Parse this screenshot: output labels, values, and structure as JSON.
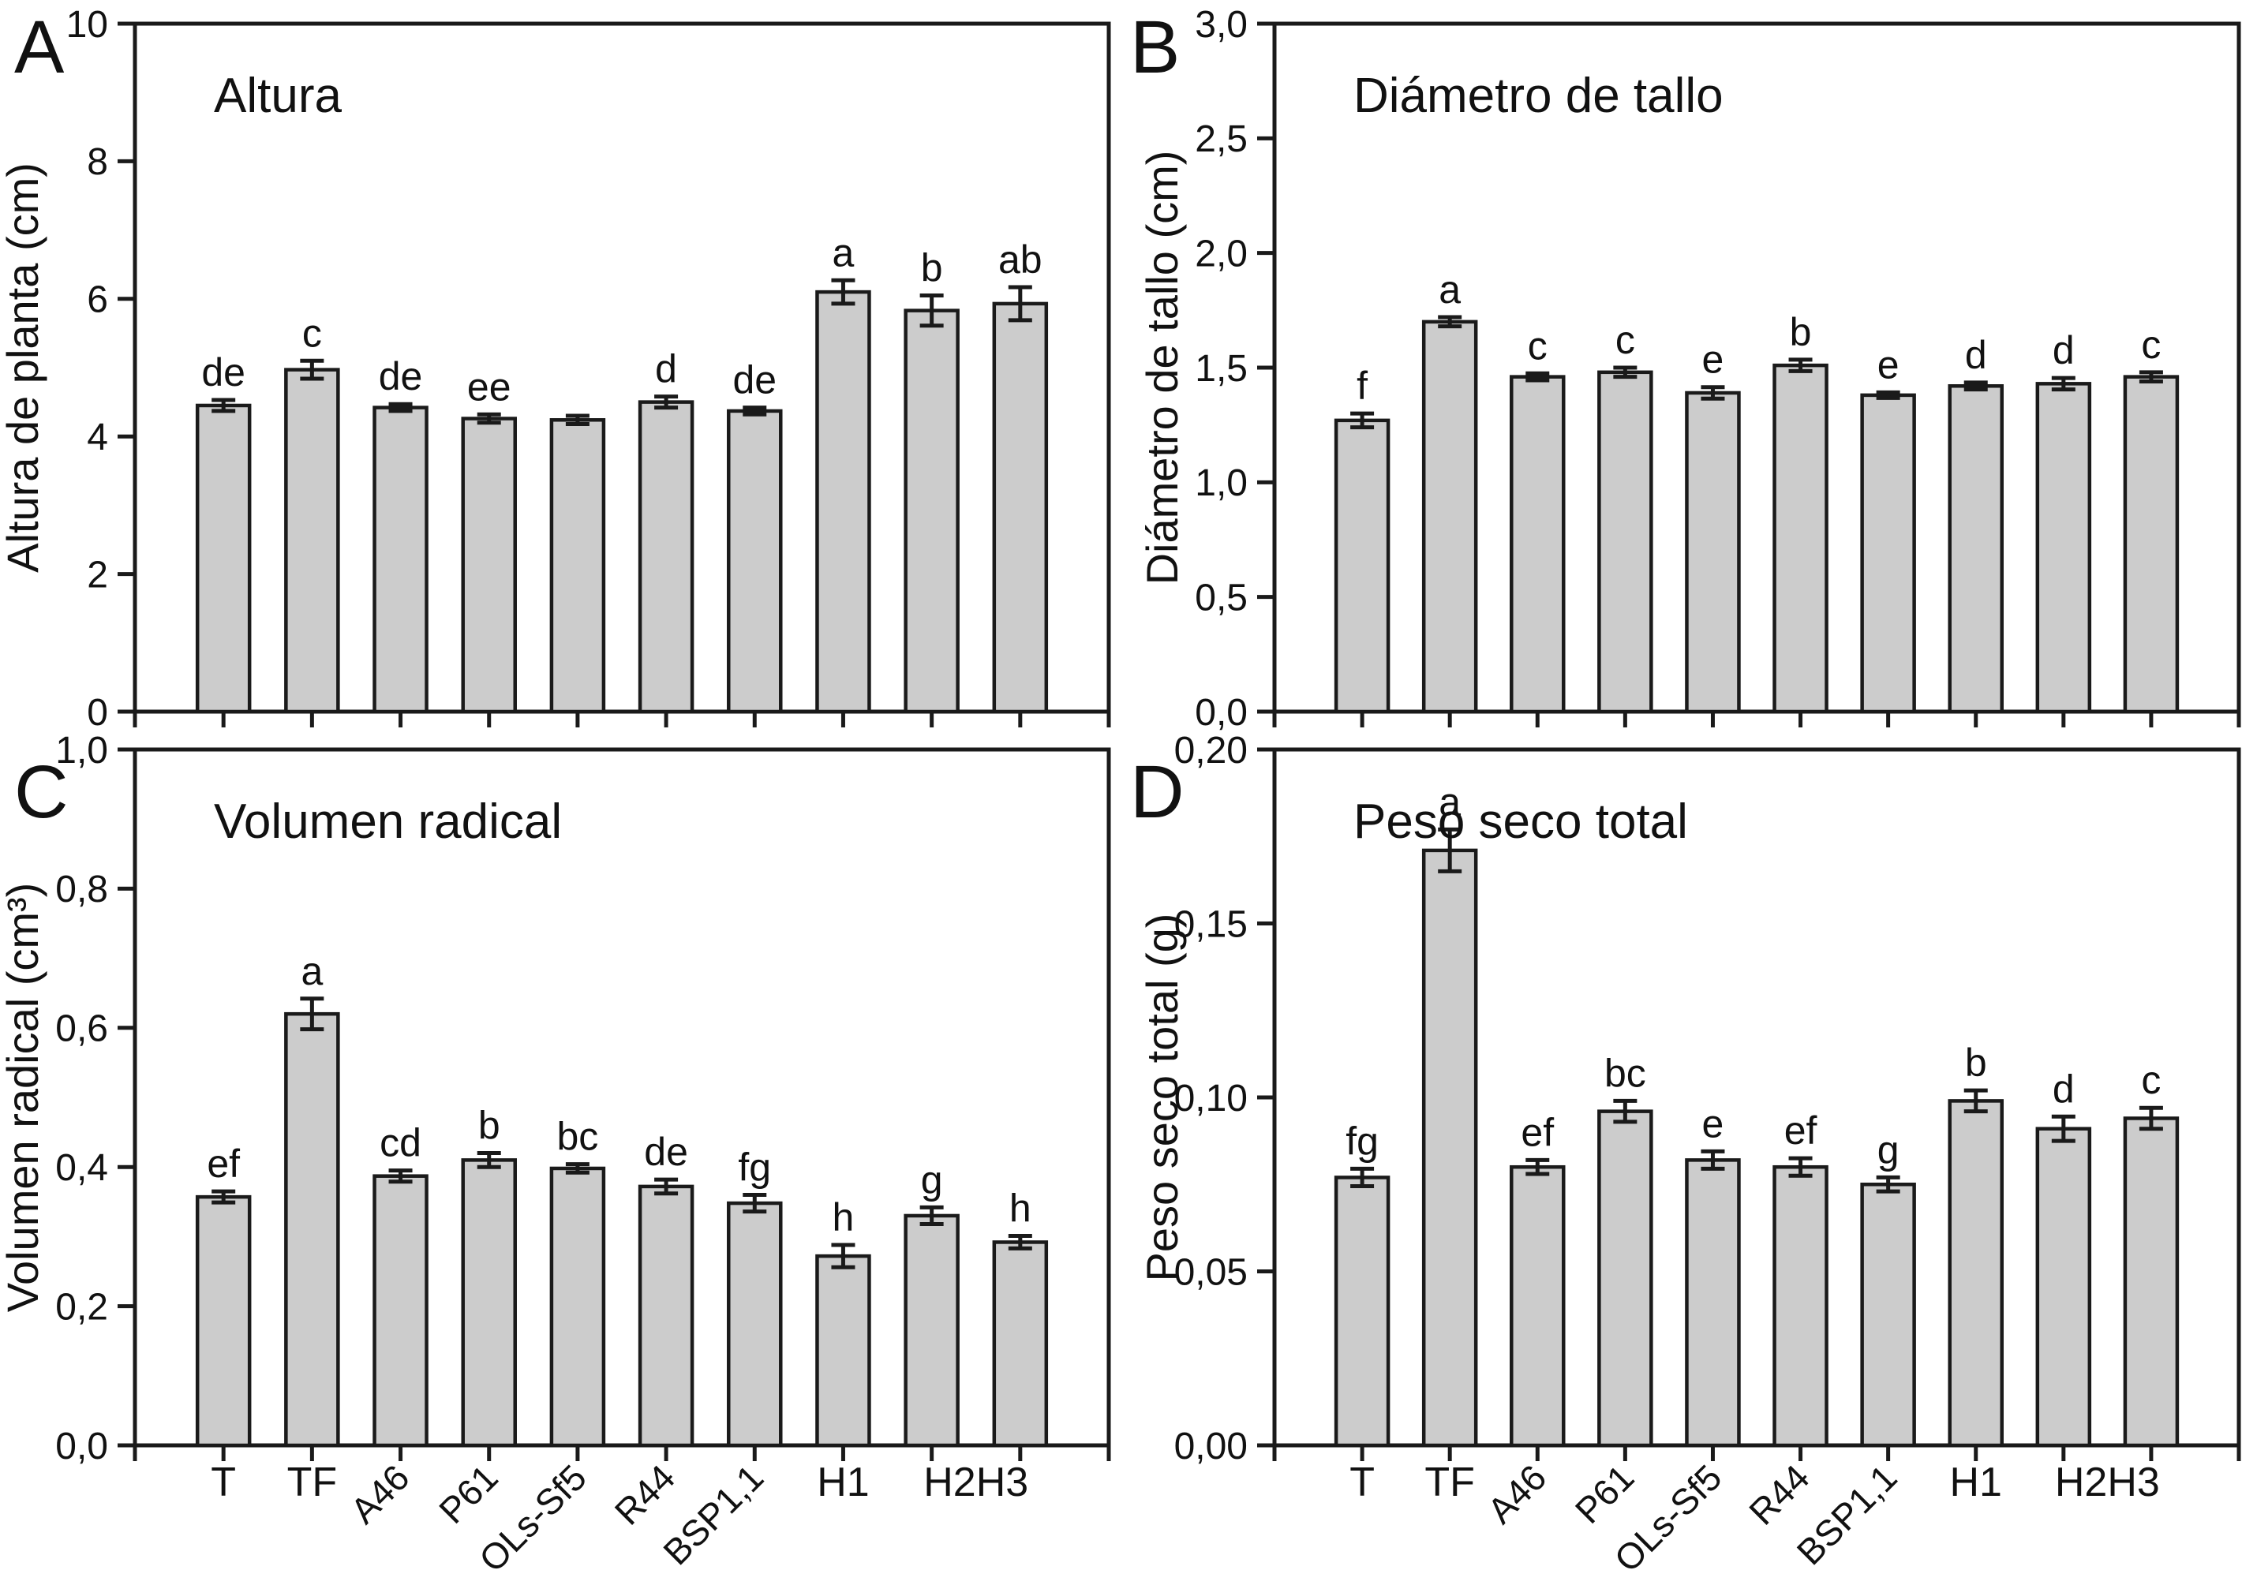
{
  "figure": {
    "background_color": "#ffffff",
    "bar_fill_color": "#cccccc",
    "line_color": "#1a1a1a",
    "text_color": "#111111"
  },
  "chart_data": {
    "type": "bar",
    "grid": false,
    "legend": "none",
    "decimal_style": "comma",
    "categories": [
      "T",
      "TF",
      "A46",
      "P61",
      "OLs-Sf5",
      "R44",
      "BSP1,1",
      "H1",
      "H2H3"
    ],
    "x_labels": [
      {
        "text": "T",
        "bar": 0,
        "rotated": false
      },
      {
        "text": "TF",
        "bar": 1,
        "rotated": false
      },
      {
        "text": "A46",
        "bar": 2,
        "rotated": true
      },
      {
        "text": "P61",
        "bar": 3,
        "rotated": true
      },
      {
        "text": "OLs-Sf5",
        "bar": 4,
        "rotated": true
      },
      {
        "text": "R44",
        "bar": 5,
        "rotated": true
      },
      {
        "text": "BSP1,1",
        "bar": 6,
        "rotated": true
      },
      {
        "text": "H1",
        "bar": 7,
        "rotated": false
      },
      {
        "text": "H2H3",
        "bar": 8.5,
        "rotated": false
      }
    ],
    "panels": [
      {
        "id": "A",
        "panel_letter": "A",
        "title": "Altura",
        "ylabel": "Altura de planta (cm)",
        "ylim": [
          0,
          10
        ],
        "yticks": [
          {
            "v": 0,
            "label": "0"
          },
          {
            "v": 2,
            "label": "2"
          },
          {
            "v": 4,
            "label": "4"
          },
          {
            "v": 6,
            "label": "6"
          },
          {
            "v": 8,
            "label": "8"
          },
          {
            "v": 10,
            "label": "10"
          }
        ],
        "values": [
          4.45,
          4.97,
          4.42,
          4.26,
          4.24,
          4.5,
          4.37,
          6.1,
          5.83,
          5.93
        ],
        "errors": [
          0.08,
          0.13,
          0.05,
          0.06,
          0.06,
          0.08,
          0.05,
          0.17,
          0.22,
          0.24
        ],
        "letters": [
          "de",
          "c",
          "de",
          "ee",
          "",
          "d",
          "de",
          "a",
          "b",
          "ab"
        ],
        "show_x_labels": false
      },
      {
        "id": "B",
        "panel_letter": "B",
        "title": "Diámetro de tallo",
        "ylabel": "Diámetro de tallo (cm)",
        "ylim": [
          0,
          3.0
        ],
        "yticks": [
          {
            "v": 0.0,
            "label": "0,0"
          },
          {
            "v": 0.5,
            "label": "0,5"
          },
          {
            "v": 1.0,
            "label": "1,0"
          },
          {
            "v": 1.5,
            "label": "1,5"
          },
          {
            "v": 2.0,
            "label": "2,0"
          },
          {
            "v": 2.5,
            "label": "2,5"
          },
          {
            "v": 3.0,
            "label": "3,0"
          }
        ],
        "values": [
          1.27,
          1.7,
          1.46,
          1.48,
          1.39,
          1.51,
          1.38,
          1.42,
          1.43,
          1.46
        ],
        "errors": [
          0.03,
          0.02,
          0.015,
          0.02,
          0.025,
          0.025,
          0.012,
          0.015,
          0.025,
          0.02
        ],
        "letters": [
          "f",
          "a",
          "c",
          "c",
          "e",
          "b",
          "e",
          "d",
          "d",
          "c"
        ],
        "show_x_labels": false
      },
      {
        "id": "C",
        "panel_letter": "C",
        "title": "Volumen radical",
        "ylabel": "Volumen radical (cm³)",
        "ylim": [
          0,
          1.0
        ],
        "yticks": [
          {
            "v": 0.0,
            "label": "0,0"
          },
          {
            "v": 0.2,
            "label": "0,2"
          },
          {
            "v": 0.4,
            "label": "0,4"
          },
          {
            "v": 0.6,
            "label": "0,6"
          },
          {
            "v": 0.8,
            "label": "0,8"
          },
          {
            "v": 1.0,
            "label": "1,0"
          }
        ],
        "values": [
          0.357,
          0.62,
          0.387,
          0.41,
          0.398,
          0.372,
          0.348,
          0.272,
          0.33,
          0.292
        ],
        "errors": [
          0.008,
          0.022,
          0.008,
          0.01,
          0.006,
          0.01,
          0.012,
          0.016,
          0.012,
          0.009
        ],
        "letters": [
          "ef",
          "a",
          "cd",
          "b",
          "bc",
          "de",
          "fg",
          "h",
          "g",
          "h"
        ],
        "show_x_labels": true
      },
      {
        "id": "D",
        "panel_letter": "D",
        "title": "Peso seco total",
        "ylabel": "Peso seco total (g)",
        "ylim": [
          0,
          0.2
        ],
        "yticks": [
          {
            "v": 0.0,
            "label": "0,00"
          },
          {
            "v": 0.05,
            "label": "0,05"
          },
          {
            "v": 0.1,
            "label": "0,10"
          },
          {
            "v": 0.15,
            "label": "0,15"
          },
          {
            "v": 0.2,
            "label": "0,20"
          }
        ],
        "values": [
          0.077,
          0.171,
          0.08,
          0.096,
          0.082,
          0.08,
          0.075,
          0.099,
          0.091,
          0.094
        ],
        "errors": [
          0.0025,
          0.006,
          0.002,
          0.003,
          0.0025,
          0.0025,
          0.002,
          0.003,
          0.0035,
          0.003
        ],
        "letters": [
          "fg",
          "a",
          "ef",
          "bc",
          "e",
          "ef",
          "g",
          "b",
          "d",
          "c"
        ],
        "show_x_labels": true
      }
    ]
  }
}
